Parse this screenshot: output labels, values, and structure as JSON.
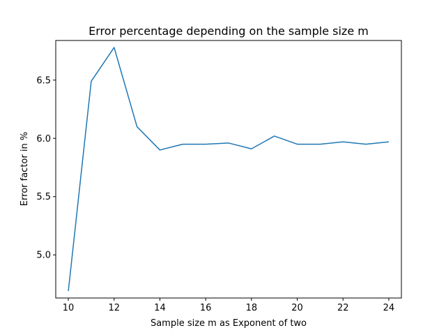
{
  "chart_data": {
    "type": "line",
    "title": "Error percentage depending on the sample size m",
    "xlabel": "Sample size m as Exponent of two",
    "ylabel": "Error factor in %",
    "xlim": [
      9.45,
      24.55
    ],
    "ylim": [
      4.63,
      6.84
    ],
    "grid": false,
    "x_ticks": [
      10,
      12,
      14,
      16,
      18,
      20,
      22,
      24
    ],
    "y_ticks": [
      5.0,
      5.5,
      6.0,
      6.5
    ],
    "x_tick_labels": [
      "10",
      "12",
      "14",
      "16",
      "18",
      "20",
      "22",
      "24"
    ],
    "y_tick_labels": [
      "5.0",
      "5.5",
      "6.0",
      "6.5"
    ],
    "series": [
      {
        "color": "#1f77b4",
        "x": [
          10,
          11,
          12,
          13,
          14,
          15,
          16,
          17,
          18,
          19,
          20,
          21,
          22,
          23,
          24
        ],
        "y": [
          4.69,
          6.49,
          6.78,
          6.1,
          5.9,
          5.95,
          5.95,
          5.96,
          5.91,
          6.02,
          5.95,
          5.95,
          5.97,
          5.95,
          5.97
        ]
      }
    ]
  }
}
